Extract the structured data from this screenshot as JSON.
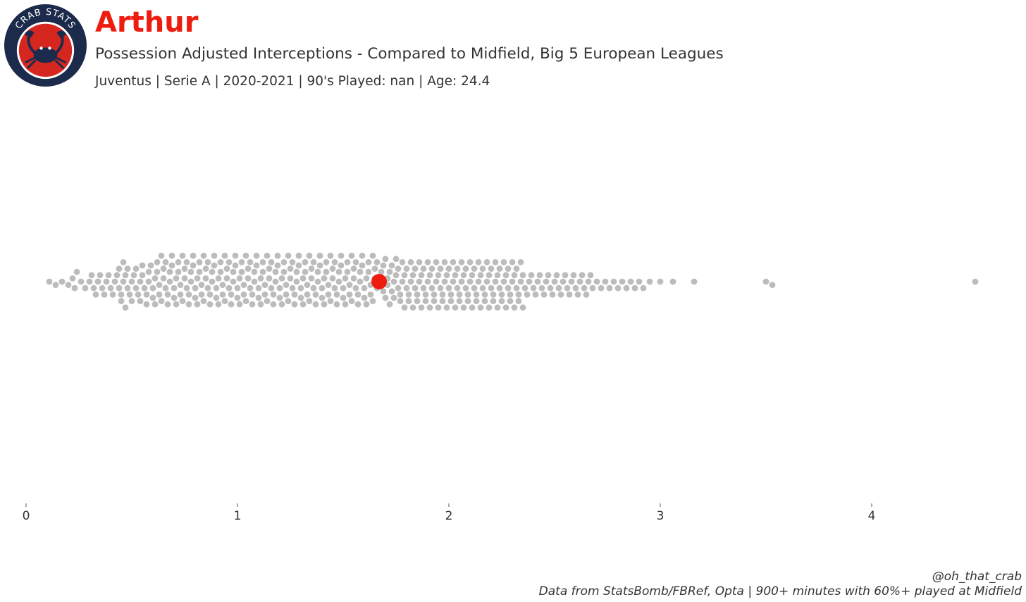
{
  "header": {
    "logo_text": "CRAB STATS",
    "player_name": "Arthur",
    "subtitle": "Possession Adjusted Interceptions - Compared to Midfield, Big 5 European Leagues",
    "info": "Juventus  | Serie A | 2020-2021 | 90's Played: nan | Age: 24.4"
  },
  "colors": {
    "title": "#ee1c0e",
    "highlight": "#ee1c0e",
    "points": "#bdbcbc",
    "logo_navy": "#1c2b4b",
    "logo_red": "#d62620",
    "text": "#333333"
  },
  "chart_data": {
    "type": "scatter",
    "subtype": "beeswarm",
    "title": "",
    "xlabel": "",
    "ylabel": "",
    "xlim": [
      0,
      4.7
    ],
    "xticks": [
      0,
      1,
      2,
      3,
      4
    ],
    "grid": false,
    "highlight": {
      "name": "Arthur",
      "x": 1.67
    },
    "series": [
      {
        "values": [
          0.11,
          0.14,
          0.17,
          0.2,
          0.22,
          0.23,
          0.24,
          0.26,
          0.28,
          0.3,
          0.31,
          0.32,
          0.33,
          0.34,
          0.35,
          0.36,
          0.37,
          0.38,
          0.39,
          0.4,
          0.41,
          0.42,
          0.43,
          0.44,
          0.44,
          0.45,
          0.45,
          0.46,
          0.46,
          0.47,
          0.47,
          0.48,
          0.48,
          0.49,
          0.5,
          0.5,
          0.51,
          0.52,
          0.52,
          0.53,
          0.54,
          0.54,
          0.55,
          0.55,
          0.56,
          0.57,
          0.57,
          0.58,
          0.58,
          0.59,
          0.6,
          0.6,
          0.61,
          0.61,
          0.62,
          0.62,
          0.63,
          0.63,
          0.64,
          0.64,
          0.65,
          0.65,
          0.66,
          0.66,
          0.67,
          0.67,
          0.68,
          0.68,
          0.69,
          0.69,
          0.7,
          0.7,
          0.71,
          0.71,
          0.72,
          0.72,
          0.73,
          0.73,
          0.74,
          0.74,
          0.75,
          0.75,
          0.76,
          0.76,
          0.77,
          0.77,
          0.78,
          0.78,
          0.79,
          0.79,
          0.8,
          0.8,
          0.81,
          0.81,
          0.82,
          0.82,
          0.83,
          0.83,
          0.84,
          0.84,
          0.85,
          0.85,
          0.86,
          0.86,
          0.87,
          0.87,
          0.88,
          0.88,
          0.89,
          0.89,
          0.9,
          0.9,
          0.91,
          0.91,
          0.92,
          0.92,
          0.93,
          0.93,
          0.94,
          0.94,
          0.95,
          0.95,
          0.96,
          0.96,
          0.97,
          0.97,
          0.98,
          0.98,
          0.99,
          0.99,
          1.0,
          1.0,
          1.01,
          1.01,
          1.02,
          1.02,
          1.03,
          1.03,
          1.04,
          1.04,
          1.05,
          1.05,
          1.06,
          1.06,
          1.07,
          1.07,
          1.08,
          1.08,
          1.09,
          1.09,
          1.1,
          1.1,
          1.11,
          1.11,
          1.12,
          1.12,
          1.13,
          1.13,
          1.14,
          1.14,
          1.15,
          1.15,
          1.16,
          1.16,
          1.17,
          1.17,
          1.18,
          1.18,
          1.19,
          1.19,
          1.2,
          1.2,
          1.21,
          1.21,
          1.22,
          1.22,
          1.23,
          1.23,
          1.24,
          1.24,
          1.25,
          1.25,
          1.26,
          1.26,
          1.27,
          1.27,
          1.28,
          1.28,
          1.29,
          1.29,
          1.3,
          1.3,
          1.31,
          1.31,
          1.32,
          1.32,
          1.33,
          1.33,
          1.34,
          1.34,
          1.35,
          1.35,
          1.36,
          1.36,
          1.37,
          1.37,
          1.38,
          1.38,
          1.39,
          1.39,
          1.4,
          1.4,
          1.41,
          1.41,
          1.42,
          1.42,
          1.43,
          1.43,
          1.44,
          1.44,
          1.45,
          1.45,
          1.46,
          1.46,
          1.47,
          1.47,
          1.48,
          1.48,
          1.49,
          1.49,
          1.5,
          1.5,
          1.51,
          1.51,
          1.52,
          1.52,
          1.53,
          1.53,
          1.54,
          1.54,
          1.55,
          1.55,
          1.56,
          1.56,
          1.57,
          1.57,
          1.58,
          1.58,
          1.59,
          1.59,
          1.6,
          1.6,
          1.61,
          1.61,
          1.62,
          1.62,
          1.63,
          1.63,
          1.64,
          1.64,
          1.65,
          1.65,
          1.66,
          1.66,
          1.68,
          1.68,
          1.69,
          1.69,
          1.7,
          1.7,
          1.71,
          1.71,
          1.72,
          1.72,
          1.73,
          1.73,
          1.74,
          1.74,
          1.75,
          1.75,
          1.76,
          1.76,
          1.77,
          1.77,
          1.78,
          1.78,
          1.79,
          1.79,
          1.8,
          1.8,
          1.81,
          1.81,
          1.82,
          1.82,
          1.83,
          1.83,
          1.84,
          1.84,
          1.85,
          1.85,
          1.86,
          1.86,
          1.87,
          1.87,
          1.88,
          1.88,
          1.89,
          1.89,
          1.9,
          1.9,
          1.91,
          1.91,
          1.92,
          1.92,
          1.93,
          1.93,
          1.94,
          1.94,
          1.95,
          1.95,
          1.96,
          1.96,
          1.97,
          1.97,
          1.98,
          1.98,
          1.99,
          1.99,
          2.0,
          2.0,
          2.01,
          2.01,
          2.02,
          2.02,
          2.03,
          2.03,
          2.04,
          2.04,
          2.05,
          2.05,
          2.06,
          2.06,
          2.07,
          2.07,
          2.08,
          2.08,
          2.09,
          2.09,
          2.1,
          2.1,
          2.11,
          2.11,
          2.12,
          2.12,
          2.13,
          2.13,
          2.14,
          2.14,
          2.15,
          2.15,
          2.16,
          2.16,
          2.17,
          2.17,
          2.18,
          2.18,
          2.19,
          2.19,
          2.2,
          2.2,
          2.21,
          2.21,
          2.22,
          2.22,
          2.23,
          2.23,
          2.24,
          2.24,
          2.25,
          2.25,
          2.26,
          2.26,
          2.27,
          2.27,
          2.28,
          2.28,
          2.29,
          2.29,
          2.3,
          2.3,
          2.31,
          2.31,
          2.32,
          2.32,
          2.33,
          2.33,
          2.34,
          2.34,
          2.35,
          2.35,
          2.36,
          2.37,
          2.38,
          2.39,
          2.4,
          2.41,
          2.42,
          2.43,
          2.44,
          2.45,
          2.46,
          2.47,
          2.48,
          2.49,
          2.5,
          2.51,
          2.52,
          2.53,
          2.54,
          2.55,
          2.56,
          2.57,
          2.58,
          2.59,
          2.6,
          2.61,
          2.62,
          2.63,
          2.64,
          2.65,
          2.66,
          2.67,
          2.68,
          2.7,
          2.72,
          2.74,
          2.76,
          2.78,
          2.8,
          2.82,
          2.84,
          2.86,
          2.88,
          2.9,
          2.92,
          2.95,
          3.0,
          3.06,
          3.16,
          3.5,
          3.53,
          4.49
        ]
      }
    ]
  },
  "footer": {
    "handle": "@oh_that_crab",
    "source": "Data from StatsBomb/FBRef, Opta | 900+ minutes with 60%+ played at Midfield"
  }
}
